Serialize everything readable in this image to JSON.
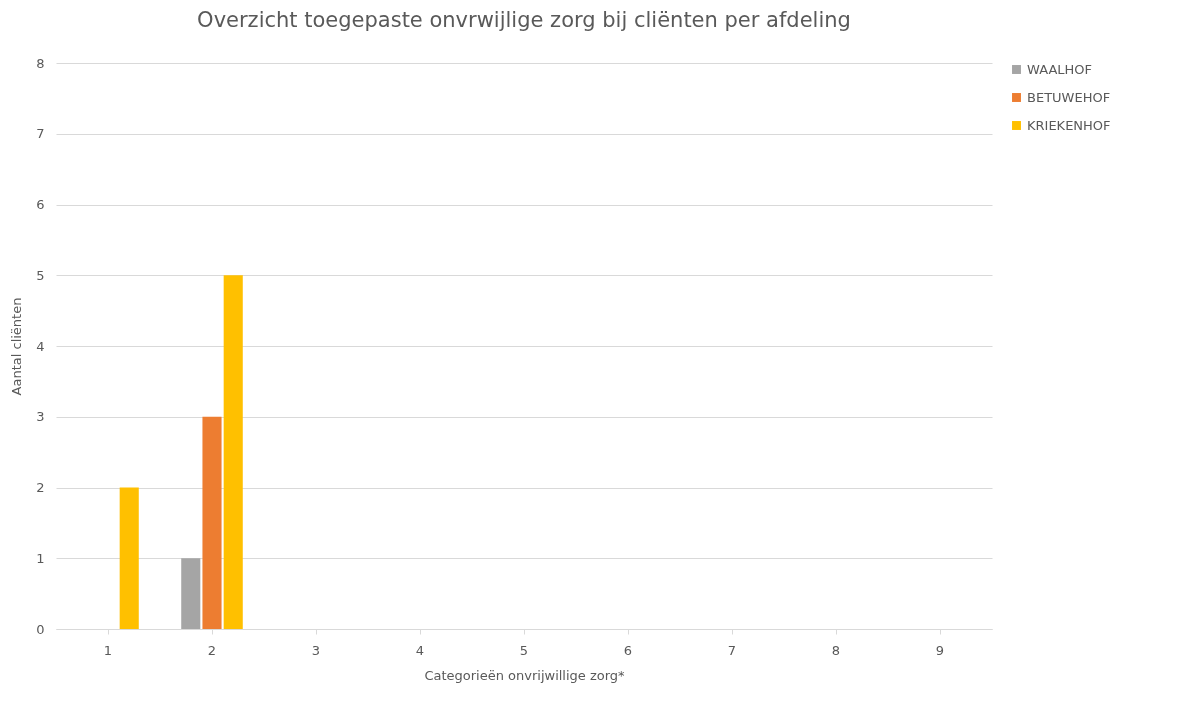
{
  "chart_data": {
    "type": "bar",
    "title": "Overzicht toegepaste onvrwijlige zorg bij cliënten per afdeling",
    "xlabel": "Categorieën onvrijwillige zorg*",
    "ylabel": "Aantal cliënten",
    "categories": [
      "1",
      "2",
      "3",
      "4",
      "5",
      "6",
      "7",
      "8",
      "9"
    ],
    "series": [
      {
        "name": "WAALHOF",
        "color": "#a5a5a5",
        "values": [
          0,
          1,
          0,
          0,
          0,
          0,
          0,
          0,
          0
        ]
      },
      {
        "name": "BETUWEHOF",
        "color": "#ed7d31",
        "values": [
          0,
          3,
          0,
          0,
          0,
          0,
          0,
          0,
          0
        ]
      },
      {
        "name": "KRIEKENHOF",
        "color": "#ffc000",
        "values": [
          2,
          5,
          0,
          0,
          0,
          0,
          0,
          0,
          0
        ]
      }
    ],
    "ylim": [
      0,
      8
    ],
    "yticks": [
      0,
      1,
      2,
      3,
      4,
      5,
      6,
      7,
      8
    ],
    "grid": "y",
    "legend": "right"
  }
}
